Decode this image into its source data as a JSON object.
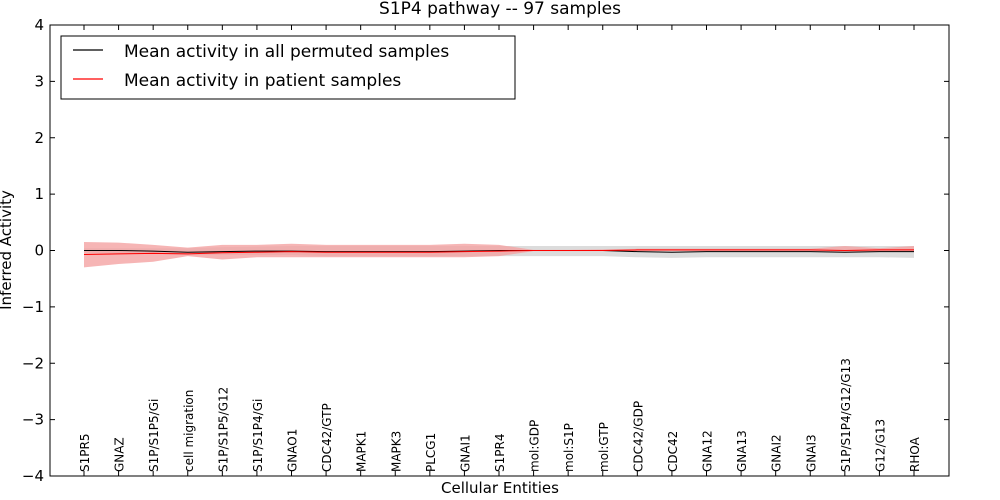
{
  "chart_data": {
    "type": "line",
    "title": "S1P4 pathway -- 97 samples",
    "xlabel": "Cellular Entities",
    "ylabel": "Inferred Activity",
    "ylim": [
      -4,
      4
    ],
    "yticks": [
      4,
      3,
      2,
      1,
      0,
      -1,
      -2,
      -3,
      -4
    ],
    "ytick_labels": [
      "4",
      "3",
      "2",
      "1",
      "0",
      "−1",
      "−2",
      "−3",
      "−4"
    ],
    "categories": [
      "S1PR5",
      "GNAZ",
      "S1P/S1P5/Gi",
      "cell migration",
      "S1P/S1P5/G12",
      "S1P/S1P4/Gi",
      "GNAO1",
      "CDC42/GTP",
      "MAPK1",
      "MAPK3",
      "PLCG1",
      "GNAI1",
      "S1PR4",
      "mol:GDP",
      "mol:S1P",
      "mol:GTP",
      "CDC42/GDP",
      "CDC42",
      "GNA12",
      "GNA13",
      "GNAI2",
      "GNAI3",
      "S1P/S1P4/G12/G13",
      "G12/G13",
      "RHOA"
    ],
    "legend_position": "top-left",
    "series": [
      {
        "name": "Mean activity in all permuted samples",
        "color": "#000000",
        "band_color": "#bfbfbf",
        "values": [
          0.0,
          0.0,
          -0.01,
          -0.03,
          -0.02,
          -0.01,
          -0.01,
          -0.02,
          -0.02,
          -0.02,
          -0.02,
          -0.01,
          0.0,
          0.0,
          0.0,
          0.0,
          -0.02,
          -0.03,
          -0.02,
          -0.02,
          -0.02,
          -0.02,
          -0.03,
          -0.02,
          -0.02
        ],
        "lower": [
          -0.04,
          -0.05,
          -0.06,
          -0.08,
          -0.08,
          -0.08,
          -0.08,
          -0.1,
          -0.1,
          -0.1,
          -0.1,
          -0.1,
          -0.1,
          -0.1,
          -0.1,
          -0.1,
          -0.12,
          -0.13,
          -0.12,
          -0.12,
          -0.12,
          -0.12,
          -0.12,
          -0.12,
          -0.13
        ],
        "upper": [
          0.04,
          0.04,
          0.04,
          0.04,
          0.06,
          0.07,
          0.08,
          0.08,
          0.08,
          0.08,
          0.08,
          0.08,
          0.08,
          0.08,
          0.08,
          0.08,
          0.08,
          0.08,
          0.08,
          0.08,
          0.08,
          0.08,
          0.08,
          0.08,
          0.08
        ]
      },
      {
        "name": "Mean activity in patient samples",
        "color": "#ff0000",
        "band_color": "#f4a3a3",
        "values": [
          -0.07,
          -0.06,
          -0.05,
          -0.06,
          -0.04,
          -0.03,
          -0.02,
          -0.03,
          -0.03,
          -0.03,
          -0.03,
          -0.02,
          -0.01,
          0.0,
          0.0,
          0.0,
          0.01,
          0.01,
          0.01,
          0.01,
          0.01,
          0.01,
          0.0,
          0.01,
          0.01
        ],
        "lower": [
          -0.3,
          -0.24,
          -0.2,
          -0.1,
          -0.16,
          -0.12,
          -0.12,
          -0.12,
          -0.12,
          -0.12,
          -0.12,
          -0.12,
          -0.1,
          -0.01,
          -0.01,
          -0.01,
          -0.01,
          -0.01,
          -0.01,
          -0.01,
          -0.01,
          -0.01,
          -0.02,
          -0.02,
          -0.02
        ],
        "upper": [
          0.15,
          0.14,
          0.1,
          0.05,
          0.1,
          0.1,
          0.12,
          0.1,
          0.1,
          0.1,
          0.1,
          0.12,
          0.1,
          0.01,
          0.01,
          0.02,
          0.03,
          0.03,
          0.03,
          0.03,
          0.03,
          0.03,
          0.08,
          0.04,
          0.08
        ]
      }
    ]
  }
}
